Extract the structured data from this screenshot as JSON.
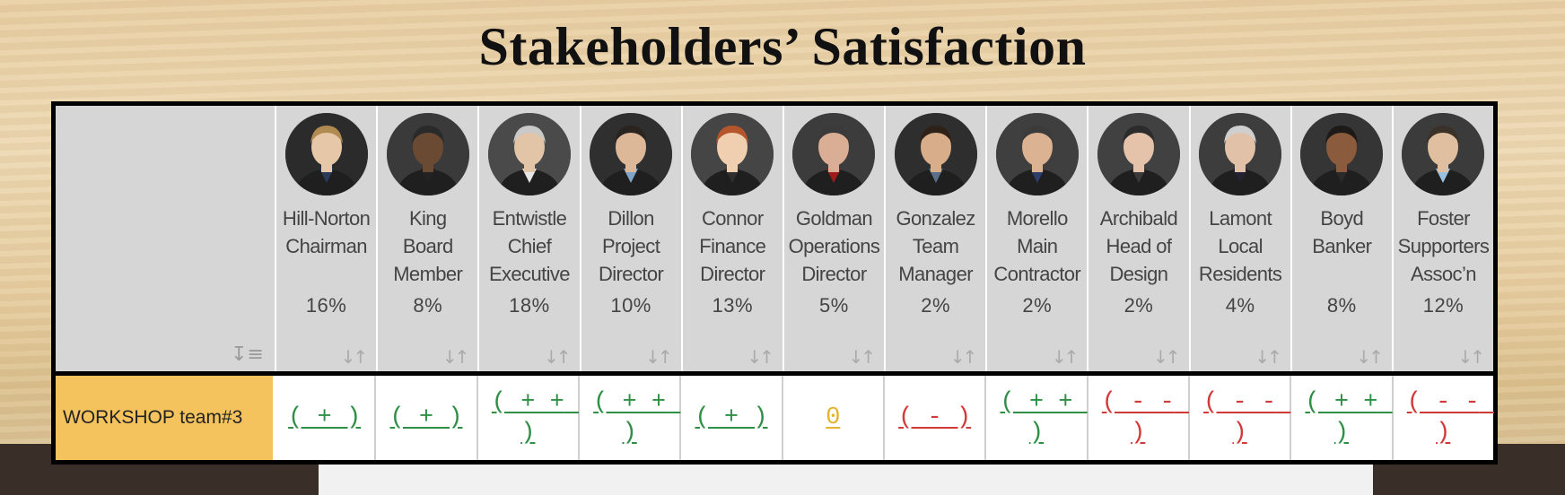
{
  "title": "Stakeholders’ Satisfaction",
  "corner_sort_icon": "sort-descending-icon",
  "column_sort_icon": "sort-arrows-icon",
  "colors": {
    "positive": "#2f8f45",
    "neutral": "#e3b22e",
    "negative": "#d23a3a",
    "team_cell": "#f4c35d",
    "header_bg": "#d6d6d6"
  },
  "stakeholders": [
    {
      "name_lines": [
        "Hill-Norton",
        "Chairman"
      ],
      "percent": "16%",
      "avatar": "man-blond-hair-portrait"
    },
    {
      "name_lines": [
        "King",
        "Board",
        "Member"
      ],
      "percent": "8%",
      "avatar": "bald-man-portrait"
    },
    {
      "name_lines": [
        "Entwistle",
        "Chief",
        "Executive"
      ],
      "percent": "18%",
      "avatar": "grey-haired-man-portrait"
    },
    {
      "name_lines": [
        "Dillon",
        "Project",
        "Director"
      ],
      "percent": "10%",
      "avatar": "young-man-portrait"
    },
    {
      "name_lines": [
        "Connor",
        "Finance",
        "Director"
      ],
      "percent": "13%",
      "avatar": "red-haired-woman-portrait"
    },
    {
      "name_lines": [
        "Goldman",
        "Operations",
        "Director"
      ],
      "percent": "5%",
      "avatar": "man-red-tie-portrait"
    },
    {
      "name_lines": [
        "Gonzalez",
        "Team",
        "Manager"
      ],
      "percent": "2%",
      "avatar": "curly-haired-man-portrait"
    },
    {
      "name_lines": [
        "Morello",
        "Main",
        "Contractor"
      ],
      "percent": "2%",
      "avatar": "man-suit-portrait"
    },
    {
      "name_lines": [
        "Archibald",
        "Head of",
        "Design"
      ],
      "percent": "2%",
      "avatar": "woman-glasses-portrait"
    },
    {
      "name_lines": [
        "Lamont",
        "Local",
        "Residents"
      ],
      "percent": "4%",
      "avatar": "older-man-glasses-portrait"
    },
    {
      "name_lines": [
        "Boyd",
        "Banker"
      ],
      "percent": "8%",
      "avatar": "woman-dark-hair-portrait"
    },
    {
      "name_lines": [
        "Foster",
        "Supporters",
        "Assoc’n"
      ],
      "percent": "12%",
      "avatar": "man-light-shirt-portrait"
    }
  ],
  "rows": [
    {
      "team": "WORKSHOP team#3",
      "scores": [
        {
          "text": "( + )",
          "sentiment": "positive"
        },
        {
          "text": "( + )",
          "sentiment": "positive"
        },
        {
          "text": "( + + )",
          "sentiment": "positive"
        },
        {
          "text": "( + + )",
          "sentiment": "positive"
        },
        {
          "text": "( + )",
          "sentiment": "positive"
        },
        {
          "text": "0",
          "sentiment": "neutral"
        },
        {
          "text": "( - )",
          "sentiment": "negative"
        },
        {
          "text": "( + + )",
          "sentiment": "positive"
        },
        {
          "text": "( - - )",
          "sentiment": "negative"
        },
        {
          "text": "( - - )",
          "sentiment": "negative"
        },
        {
          "text": "( + + )",
          "sentiment": "positive"
        },
        {
          "text": "( - - )",
          "sentiment": "negative"
        }
      ]
    }
  ]
}
